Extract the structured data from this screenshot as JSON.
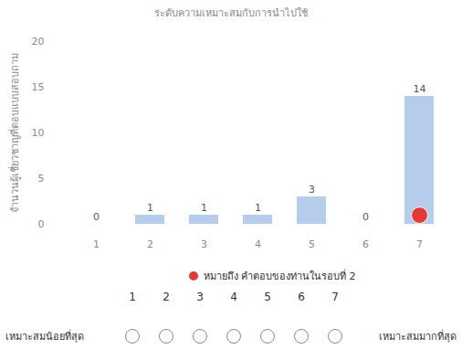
{
  "chart_data": {
    "type": "bar",
    "title": "ระดับความเหมาะสมกับการนำไปใช้",
    "y_label": "จำนวนผู้เชี่ยวชาญที่ตอบแบบสอบถาม",
    "categories": [
      "1",
      "2",
      "3",
      "4",
      "5",
      "6",
      "7"
    ],
    "values": [
      0,
      1,
      1,
      1,
      3,
      0,
      14
    ],
    "color": "#a8c4e6",
    "ylim": [
      0,
      20
    ],
    "yticks": [
      0,
      5,
      10,
      15,
      20
    ],
    "data_labels": true,
    "grid": false,
    "answer": {
      "category": "7",
      "color": "#e53935",
      "label": "หมายถึง คำตอบของท่านในรอบที่ 2"
    },
    "rating_scale": {
      "options": [
        1,
        2,
        3,
        4,
        5,
        6,
        7
      ],
      "left_label": "เหมาะสมน้อยที่สุด",
      "right_label": "เหมาะสมมากที่สุด"
    }
  }
}
